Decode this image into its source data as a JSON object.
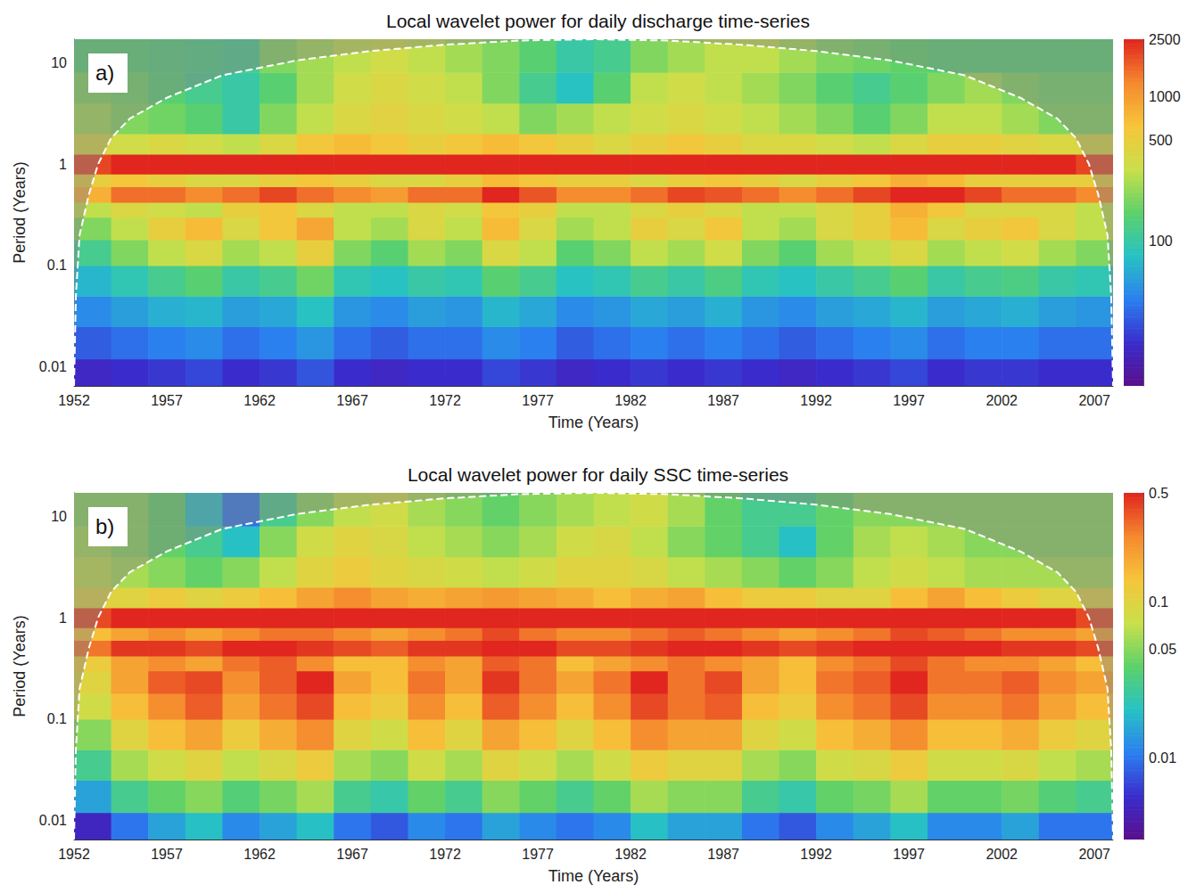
{
  "chart_data": [
    {
      "type": "heatmap",
      "title": "Local wavelet power for daily discharge time-series",
      "xlabel": "Time (Years)",
      "ylabel": "Period (Years)",
      "annotation": "a)",
      "xlim": [
        1952,
        2008
      ],
      "xticks": [
        1952,
        1957,
        1962,
        1967,
        1972,
        1977,
        1982,
        1987,
        1992,
        1997,
        2002,
        2007
      ],
      "ylim": [
        0.0065,
        17
      ],
      "yticks": [
        0.01,
        0.1,
        1,
        10
      ],
      "log": "y",
      "grid": false,
      "x_bins": [
        1952,
        1954,
        1956,
        1958,
        1960,
        1962,
        1964,
        1966,
        1968,
        1970,
        1972,
        1974,
        1976,
        1978,
        1980,
        1982,
        1984,
        1986,
        1988,
        1990,
        1992,
        1994,
        1996,
        1998,
        2000,
        2002,
        2004,
        2006,
        2008
      ],
      "y_bins": [
        0.0065,
        0.012,
        0.025,
        0.05,
        0.1,
        0.18,
        0.3,
        0.42,
        0.6,
        0.8,
        1.25,
        2,
        4,
        8,
        17
      ],
      "values": [
        [
          18,
          20,
          22,
          25,
          20,
          22,
          28,
          20,
          18,
          20,
          20,
          25,
          22,
          18,
          20,
          22,
          20,
          22,
          20,
          18,
          20,
          22,
          25,
          20,
          22,
          22,
          20,
          20
        ],
        [
          30,
          35,
          40,
          45,
          35,
          40,
          50,
          35,
          30,
          35,
          35,
          45,
          40,
          30,
          35,
          40,
          35,
          40,
          35,
          30,
          35,
          40,
          45,
          35,
          40,
          40,
          35,
          35
        ],
        [
          45,
          55,
          65,
          70,
          55,
          60,
          80,
          50,
          45,
          55,
          50,
          70,
          60,
          45,
          50,
          60,
          55,
          65,
          50,
          45,
          55,
          60,
          70,
          55,
          60,
          65,
          55,
          50
        ],
        [
          70,
          90,
          120,
          150,
          100,
          120,
          180,
          90,
          80,
          100,
          90,
          150,
          120,
          80,
          90,
          120,
          100,
          130,
          90,
          80,
          100,
          120,
          150,
          100,
          120,
          130,
          100,
          90
        ],
        [
          120,
          200,
          300,
          400,
          250,
          300,
          500,
          200,
          150,
          250,
          200,
          400,
          300,
          150,
          200,
          300,
          250,
          350,
          200,
          150,
          250,
          300,
          400,
          250,
          300,
          350,
          250,
          200
        ],
        [
          200,
          300,
          500,
          700,
          400,
          600,
          900,
          300,
          250,
          400,
          300,
          700,
          400,
          250,
          300,
          500,
          400,
          600,
          300,
          250,
          400,
          500,
          700,
          400,
          500,
          600,
          400,
          300
        ],
        [
          300,
          400,
          350,
          300,
          500,
          600,
          400,
          300,
          300,
          400,
          350,
          600,
          500,
          300,
          300,
          400,
          500,
          400,
          300,
          300,
          400,
          500,
          800,
          600,
          400,
          400,
          400,
          300
        ],
        [
          800,
          1500,
          1500,
          1200,
          1500,
          2000,
          1500,
          1200,
          1000,
          1500,
          1500,
          2500,
          1800,
          1200,
          1200,
          1500,
          2000,
          1800,
          1500,
          1200,
          1500,
          2000,
          2500,
          2500,
          2000,
          1500,
          1500,
          1200
        ],
        [
          500,
          600,
          500,
          400,
          400,
          500,
          600,
          500,
          400,
          400,
          500,
          700,
          600,
          500,
          500,
          400,
          500,
          600,
          500,
          400,
          500,
          600,
          800,
          700,
          500,
          500,
          500,
          500
        ],
        [
          2000,
          2500,
          2500,
          2500,
          2500,
          2500,
          2500,
          2500,
          2500,
          2500,
          2500,
          2500,
          2500,
          2500,
          2500,
          2500,
          2500,
          2500,
          2500,
          2500,
          2500,
          2500,
          2500,
          2500,
          2500,
          2500,
          2500,
          2000
        ],
        [
          400,
          350,
          400,
          350,
          300,
          400,
          600,
          700,
          600,
          500,
          600,
          700,
          600,
          500,
          400,
          500,
          600,
          500,
          400,
          400,
          350,
          300,
          400,
          500,
          500,
          450,
          400,
          400
        ],
        [
          250,
          200,
          180,
          150,
          100,
          200,
          300,
          400,
          450,
          400,
          350,
          300,
          200,
          250,
          300,
          350,
          400,
          350,
          300,
          250,
          200,
          150,
          200,
          300,
          300,
          250,
          200,
          200
        ],
        [
          200,
          180,
          150,
          120,
          100,
          150,
          250,
          350,
          400,
          350,
          300,
          200,
          120,
          80,
          150,
          300,
          350,
          300,
          250,
          200,
          150,
          120,
          150,
          200,
          250,
          200,
          180,
          180
        ],
        [
          150,
          150,
          140,
          130,
          120,
          200,
          250,
          300,
          350,
          300,
          250,
          200,
          150,
          100,
          120,
          200,
          250,
          300,
          300,
          250,
          200,
          180,
          160,
          150,
          150,
          150,
          150,
          150
        ]
      ],
      "colorbar": {
        "lim": [
          10,
          2500
        ],
        "ticks": [
          100,
          500,
          1000,
          2500
        ],
        "log": true
      },
      "coi": {
        "x": [
          1952,
          1952.1,
          1952.3,
          1952.8,
          1953.3,
          1954,
          1955,
          1957,
          1960,
          1964,
          1968,
          1972,
          1976,
          1980,
          1984,
          1988,
          1992,
          1996,
          2000,
          2003,
          2005,
          2006,
          2006.7,
          2007.2,
          2007.7,
          2007.9,
          2008
        ],
        "y": [
          0.0065,
          0.05,
          0.2,
          0.5,
          1,
          1.8,
          2.8,
          4.5,
          7.5,
          10.5,
          13,
          15,
          16.5,
          17,
          16.5,
          15,
          13,
          10.5,
          7.5,
          4.5,
          2.8,
          1.8,
          1,
          0.5,
          0.2,
          0.05,
          0.0065
        ],
        "color": "#ffffff",
        "line_style": "dashed"
      }
    },
    {
      "type": "heatmap",
      "title": "Local wavelet power for daily SSC time-series",
      "xlabel": "Time (Years)",
      "ylabel": "Period (Years)",
      "annotation": "b)",
      "xlim": [
        1952,
        2008
      ],
      "xticks": [
        1952,
        1957,
        1962,
        1967,
        1972,
        1977,
        1982,
        1987,
        1992,
        1997,
        2002,
        2007
      ],
      "ylim": [
        0.0065,
        17
      ],
      "yticks": [
        0.01,
        0.1,
        1,
        10
      ],
      "log": "y",
      "grid": false,
      "x_bins": [
        1952,
        1954,
        1956,
        1958,
        1960,
        1962,
        1964,
        1966,
        1968,
        1970,
        1972,
        1974,
        1976,
        1978,
        1980,
        1982,
        1984,
        1986,
        1988,
        1990,
        1992,
        1994,
        1996,
        1998,
        2000,
        2002,
        2004,
        2006,
        2008
      ],
      "y_bins": [
        0.0065,
        0.012,
        0.025,
        0.05,
        0.1,
        0.18,
        0.3,
        0.42,
        0.6,
        0.8,
        1.25,
        2,
        4,
        8,
        17
      ],
      "values": [
        [
          0.005,
          0.01,
          0.015,
          0.02,
          0.012,
          0.015,
          0.02,
          0.01,
          0.008,
          0.012,
          0.01,
          0.015,
          0.012,
          0.01,
          0.012,
          0.02,
          0.015,
          0.015,
          0.01,
          0.008,
          0.012,
          0.015,
          0.02,
          0.012,
          0.012,
          0.015,
          0.01,
          0.01
        ],
        [
          0.015,
          0.03,
          0.04,
          0.05,
          0.035,
          0.045,
          0.06,
          0.03,
          0.025,
          0.04,
          0.03,
          0.05,
          0.04,
          0.03,
          0.04,
          0.06,
          0.05,
          0.05,
          0.03,
          0.025,
          0.04,
          0.045,
          0.06,
          0.04,
          0.04,
          0.045,
          0.035,
          0.03
        ],
        [
          0.03,
          0.06,
          0.08,
          0.1,
          0.07,
          0.09,
          0.12,
          0.06,
          0.05,
          0.08,
          0.06,
          0.1,
          0.08,
          0.06,
          0.08,
          0.12,
          0.1,
          0.1,
          0.06,
          0.05,
          0.08,
          0.09,
          0.12,
          0.08,
          0.08,
          0.09,
          0.07,
          0.06
        ],
        [
          0.05,
          0.1,
          0.15,
          0.2,
          0.12,
          0.18,
          0.25,
          0.1,
          0.08,
          0.15,
          0.1,
          0.2,
          0.15,
          0.1,
          0.15,
          0.25,
          0.2,
          0.2,
          0.1,
          0.08,
          0.15,
          0.18,
          0.25,
          0.15,
          0.15,
          0.18,
          0.12,
          0.1
        ],
        [
          0.08,
          0.15,
          0.25,
          0.35,
          0.2,
          0.3,
          0.4,
          0.15,
          0.12,
          0.25,
          0.15,
          0.35,
          0.25,
          0.15,
          0.25,
          0.4,
          0.3,
          0.35,
          0.15,
          0.12,
          0.25,
          0.3,
          0.4,
          0.25,
          0.25,
          0.3,
          0.2,
          0.15
        ],
        [
          0.1,
          0.2,
          0.35,
          0.4,
          0.25,
          0.35,
          0.5,
          0.2,
          0.15,
          0.3,
          0.2,
          0.45,
          0.3,
          0.2,
          0.3,
          0.5,
          0.3,
          0.4,
          0.2,
          0.15,
          0.3,
          0.35,
          0.5,
          0.3,
          0.3,
          0.35,
          0.25,
          0.2
        ],
        [
          0.12,
          0.2,
          0.25,
          0.2,
          0.3,
          0.35,
          0.25,
          0.15,
          0.15,
          0.25,
          0.2,
          0.35,
          0.3,
          0.15,
          0.2,
          0.25,
          0.3,
          0.25,
          0.2,
          0.15,
          0.25,
          0.3,
          0.4,
          0.3,
          0.25,
          0.25,
          0.2,
          0.15
        ],
        [
          0.3,
          0.45,
          0.45,
          0.4,
          0.5,
          0.5,
          0.45,
          0.4,
          0.35,
          0.45,
          0.45,
          0.5,
          0.5,
          0.4,
          0.4,
          0.45,
          0.5,
          0.5,
          0.45,
          0.4,
          0.45,
          0.5,
          0.5,
          0.5,
          0.5,
          0.45,
          0.45,
          0.4
        ],
        [
          0.15,
          0.2,
          0.25,
          0.2,
          0.25,
          0.3,
          0.3,
          0.25,
          0.2,
          0.25,
          0.3,
          0.4,
          0.3,
          0.25,
          0.25,
          0.3,
          0.35,
          0.3,
          0.25,
          0.2,
          0.25,
          0.3,
          0.4,
          0.35,
          0.3,
          0.25,
          0.25,
          0.2
        ],
        [
          0.4,
          0.5,
          0.5,
          0.5,
          0.5,
          0.5,
          0.5,
          0.5,
          0.5,
          0.5,
          0.5,
          0.5,
          0.5,
          0.5,
          0.5,
          0.5,
          0.5,
          0.5,
          0.5,
          0.5,
          0.5,
          0.5,
          0.5,
          0.5,
          0.5,
          0.5,
          0.5,
          0.4
        ],
        [
          0.1,
          0.1,
          0.12,
          0.1,
          0.12,
          0.15,
          0.2,
          0.25,
          0.2,
          0.18,
          0.2,
          0.22,
          0.2,
          0.18,
          0.15,
          0.18,
          0.2,
          0.15,
          0.12,
          0.12,
          0.1,
          0.1,
          0.15,
          0.2,
          0.15,
          0.12,
          0.1,
          0.1
        ],
        [
          0.07,
          0.06,
          0.05,
          0.04,
          0.05,
          0.07,
          0.1,
          0.12,
          0.1,
          0.09,
          0.08,
          0.07,
          0.08,
          0.1,
          0.1,
          0.09,
          0.07,
          0.06,
          0.05,
          0.04,
          0.05,
          0.07,
          0.08,
          0.07,
          0.06,
          0.06,
          0.06,
          0.06
        ],
        [
          0.06,
          0.05,
          0.04,
          0.03,
          0.02,
          0.05,
          0.08,
          0.1,
          0.09,
          0.07,
          0.06,
          0.05,
          0.06,
          0.08,
          0.09,
          0.07,
          0.05,
          0.04,
          0.03,
          0.02,
          0.04,
          0.06,
          0.07,
          0.06,
          0.05,
          0.05,
          0.05,
          0.05
        ],
        [
          0.05,
          0.05,
          0.04,
          0.02,
          0.01,
          0.03,
          0.05,
          0.07,
          0.08,
          0.06,
          0.05,
          0.04,
          0.05,
          0.06,
          0.07,
          0.08,
          0.06,
          0.04,
          0.03,
          0.03,
          0.04,
          0.05,
          0.05,
          0.05,
          0.05,
          0.05,
          0.05,
          0.05
        ]
      ],
      "colorbar": {
        "lim": [
          0.003,
          0.5
        ],
        "ticks": [
          0.01,
          0.05,
          0.1,
          0.5
        ],
        "log": true
      },
      "coi": {
        "x": [
          1952,
          1952.1,
          1952.3,
          1952.8,
          1953.3,
          1954,
          1955,
          1957,
          1960,
          1964,
          1968,
          1972,
          1976,
          1980,
          1984,
          1988,
          1992,
          1996,
          2000,
          2003,
          2005,
          2006,
          2006.7,
          2007.2,
          2007.7,
          2007.9,
          2008
        ],
        "y": [
          0.0065,
          0.05,
          0.2,
          0.5,
          1,
          1.8,
          2.8,
          4.5,
          7.5,
          10.5,
          13,
          15,
          16.5,
          17,
          16.5,
          15,
          13,
          10.5,
          7.5,
          4.5,
          2.8,
          1.8,
          1,
          0.5,
          0.2,
          0.05,
          0.0065
        ],
        "color": "#ffffff",
        "line_style": "dashed"
      }
    }
  ]
}
